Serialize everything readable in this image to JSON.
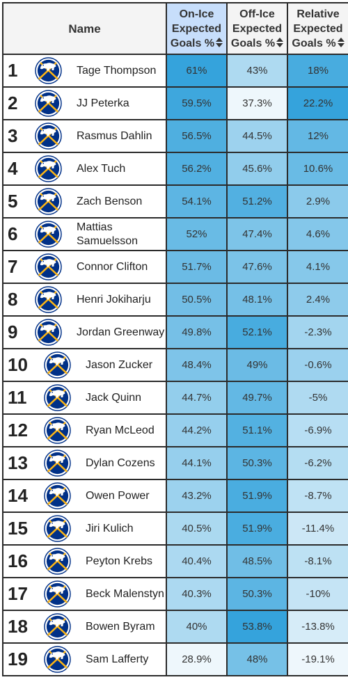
{
  "header": {
    "name_label": "Name",
    "col1_label": [
      "On-Ice",
      "Expected",
      "Goals %"
    ],
    "col2_label": [
      "Off-Ice",
      "Expected",
      "Goals %"
    ],
    "col3_label": [
      "Relative",
      "Expected",
      "Goals %"
    ],
    "sort_icon": "sort-updown-icon",
    "team_logo_icon": "sabres-logo-icon"
  },
  "colors": {
    "header_bg": "#f4f4f4",
    "active_header_bg": "#c7defb",
    "heat_dark": "#35a3dc",
    "heat_light": "#eef7fc",
    "logo_navy": "#003087",
    "logo_gold": "#fcb514"
  },
  "rows": [
    {
      "rank": "1",
      "name": "Tage Thompson",
      "on_ice": "61%",
      "off_ice": "43%",
      "relative": "18%"
    },
    {
      "rank": "2",
      "name": "JJ Peterka",
      "on_ice": "59.5%",
      "off_ice": "37.3%",
      "relative": "22.2%"
    },
    {
      "rank": "3",
      "name": "Rasmus Dahlin",
      "on_ice": "56.5%",
      "off_ice": "44.5%",
      "relative": "12%"
    },
    {
      "rank": "4",
      "name": "Alex Tuch",
      "on_ice": "56.2%",
      "off_ice": "45.6%",
      "relative": "10.6%"
    },
    {
      "rank": "5",
      "name": "Zach Benson",
      "on_ice": "54.1%",
      "off_ice": "51.2%",
      "relative": "2.9%"
    },
    {
      "rank": "6",
      "name": "Mattias Samuelsson",
      "on_ice": "52%",
      "off_ice": "47.4%",
      "relative": "4.6%"
    },
    {
      "rank": "7",
      "name": "Connor Clifton",
      "on_ice": "51.7%",
      "off_ice": "47.6%",
      "relative": "4.1%"
    },
    {
      "rank": "8",
      "name": "Henri Jokiharju",
      "on_ice": "50.5%",
      "off_ice": "48.1%",
      "relative": "2.4%"
    },
    {
      "rank": "9",
      "name": "Jordan Greenway",
      "on_ice": "49.8%",
      "off_ice": "52.1%",
      "relative": "-2.3%"
    },
    {
      "rank": "10",
      "name": "Jason Zucker",
      "on_ice": "48.4%",
      "off_ice": "49%",
      "relative": "-0.6%"
    },
    {
      "rank": "11",
      "name": "Jack Quinn",
      "on_ice": "44.7%",
      "off_ice": "49.7%",
      "relative": "-5%"
    },
    {
      "rank": "12",
      "name": "Ryan McLeod",
      "on_ice": "44.2%",
      "off_ice": "51.1%",
      "relative": "-6.9%"
    },
    {
      "rank": "13",
      "name": "Dylan Cozens",
      "on_ice": "44.1%",
      "off_ice": "50.3%",
      "relative": "-6.2%"
    },
    {
      "rank": "14",
      "name": "Owen Power",
      "on_ice": "43.2%",
      "off_ice": "51.9%",
      "relative": "-8.7%"
    },
    {
      "rank": "15",
      "name": "Jiri Kulich",
      "on_ice": "40.5%",
      "off_ice": "51.9%",
      "relative": "-11.4%"
    },
    {
      "rank": "16",
      "name": "Peyton Krebs",
      "on_ice": "40.4%",
      "off_ice": "48.5%",
      "relative": "-8.1%"
    },
    {
      "rank": "17",
      "name": "Beck Malenstyn",
      "on_ice": "40.3%",
      "off_ice": "50.3%",
      "relative": "-10%"
    },
    {
      "rank": "18",
      "name": "Bowen Byram",
      "on_ice": "40%",
      "off_ice": "53.8%",
      "relative": "-13.8%"
    },
    {
      "rank": "19",
      "name": "Sam Lafferty",
      "on_ice": "28.9%",
      "off_ice": "48%",
      "relative": "-19.1%"
    }
  ]
}
